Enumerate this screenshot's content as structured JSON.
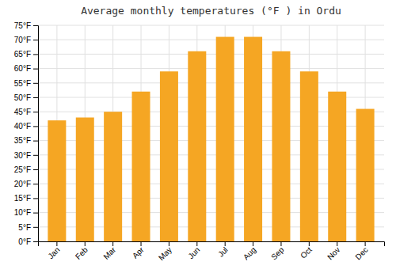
{
  "chart_data": {
    "type": "bar",
    "title": "Average monthly temperatures (°F ) in Ordu",
    "categories": [
      "Jan",
      "Feb",
      "Mar",
      "Apr",
      "May",
      "Jun",
      "Jul",
      "Aug",
      "Sep",
      "Oct",
      "Nov",
      "Dec"
    ],
    "values": [
      42,
      43,
      45,
      52,
      59,
      66,
      71,
      71,
      66,
      59,
      52,
      46
    ],
    "color": "#F5A623",
    "ylim": [
      0,
      75
    ],
    "yticks": [
      {
        "value": 0,
        "label": "0°F"
      },
      {
        "value": 5,
        "label": "5°F"
      },
      {
        "value": 10,
        "label": "10°F"
      },
      {
        "value": 15,
        "label": "15°F"
      },
      {
        "value": 20,
        "label": "20°F"
      },
      {
        "value": 25,
        "label": "25°F"
      },
      {
        "value": 30,
        "label": "30°F"
      },
      {
        "value": 35,
        "label": "35°F"
      },
      {
        "value": 40,
        "label": "40°F"
      },
      {
        "value": 45,
        "label": "45°F"
      },
      {
        "value": 50,
        "label": "50°F"
      },
      {
        "value": 55,
        "label": "55°F"
      },
      {
        "value": 60,
        "label": "60°F"
      },
      {
        "value": 65,
        "label": "65°F"
      },
      {
        "value": 70,
        "label": "70°F"
      },
      {
        "value": 75,
        "label": "75°F"
      }
    ],
    "grid": true
  }
}
